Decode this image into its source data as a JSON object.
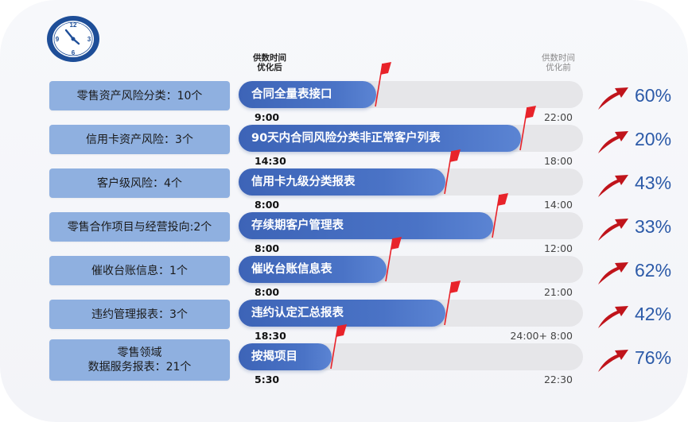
{
  "header": {
    "after_label": "供数时间\n优化后",
    "before_label": "供数时间\n优化前"
  },
  "rows": [
    {
      "category": "零售资产风险分类：10个",
      "report": "合同全量表接口",
      "after_time": "9:00",
      "before_time": "22:00",
      "improvement": "60%",
      "progress": 0.4
    },
    {
      "category": "信用卡资产风险：3个",
      "report": "90天内合同风险分类非正常客户列表",
      "after_time": "14:30",
      "before_time": "18:00",
      "improvement": "20%",
      "progress": 0.82
    },
    {
      "category": "客户级风险：4个",
      "report": "信用卡九级分类报表",
      "after_time": "8:00",
      "before_time": "14:00",
      "improvement": "43%",
      "progress": 0.6
    },
    {
      "category": "零售合作项目与经营投向:2个",
      "report": "存续期客户管理表",
      "after_time": "8:00",
      "before_time": "12:00",
      "improvement": "33%",
      "progress": 0.74
    },
    {
      "category": "催收台账信息：1个",
      "report": "催收台账信息表",
      "after_time": "8:00",
      "before_time": "21:00",
      "improvement": "62%",
      "progress": 0.43
    },
    {
      "category": "违约管理报表：3个",
      "report": "违约认定汇总报表",
      "after_time": "18:30",
      "before_time": "24:00+ 8:00",
      "improvement": "42%",
      "progress": 0.6
    },
    {
      "category": "零售领域\n数据服务报表：21个",
      "report": "按揭项目",
      "after_time": "5:30",
      "before_time": "22:30",
      "improvement": "76%",
      "progress": 0.27
    }
  ],
  "colors": {
    "bar": "#4470c4",
    "track": "#e6e6e9",
    "label_bg": "#8fb0e0",
    "flag": "#e8232a",
    "arrow": "#c0141b",
    "percent": "#2c5aa8"
  },
  "icons": {
    "clock": "clock-icon",
    "flag": "red-flag-icon",
    "arrow": "up-curved-arrow-icon"
  }
}
